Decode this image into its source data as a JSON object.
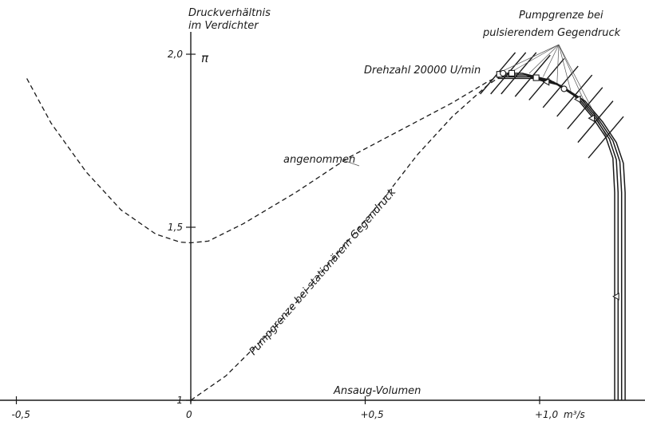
{
  "chart_data": {
    "type": "line",
    "xlim": [
      -0.5,
      1.25
    ],
    "ylim": [
      1.0,
      2.05
    ],
    "x_ticks": [
      {
        "value": -0.5,
        "label": "-0,5"
      },
      {
        "value": 0,
        "label": "0"
      },
      {
        "value": 0.5,
        "label": "+0,5"
      },
      {
        "value": 1.0,
        "label": "+1,0"
      }
    ],
    "x_unit": "m³/s",
    "y_ticks": [
      {
        "value": 1.0,
        "label": "1"
      },
      {
        "value": 1.5,
        "label": "1,5"
      },
      {
        "value": 2.0,
        "label": "2,0"
      }
    ],
    "y_symbol": "π",
    "ylabel_line1": "Druckverhältnis",
    "ylabel_line2": "im Verdichter",
    "xlabel": "Ansaug-Volumen",
    "grid": false,
    "annotations": {
      "speed": "Drehzahl 20000 U/min",
      "assumed": "angenommen",
      "surge_stationary": "Pumpgrenze bei stationärem Gegendruck",
      "surge_pulsating_line1": "Pumpgrenze bei",
      "surge_pulsating_line2": "pulsierendem Gegendruck"
    },
    "series": [
      {
        "style": "dashed",
        "x": [
          -0.47,
          -0.4,
          -0.3,
          -0.2,
          -0.1,
          -0.03,
          0.0,
          0.05,
          0.15,
          0.3,
          0.45,
          0.6,
          0.75,
          0.85,
          0.9
        ],
        "y": [
          1.93,
          1.8,
          1.66,
          1.55,
          1.48,
          1.457,
          1.455,
          1.46,
          1.51,
          1.6,
          1.7,
          1.78,
          1.86,
          1.92,
          1.945
        ]
      },
      {
        "style": "dashed",
        "x": [
          0.0,
          0.1,
          0.25,
          0.4,
          0.55,
          0.65,
          0.75,
          0.85,
          0.9
        ],
        "y": [
          1.0,
          1.07,
          1.22,
          1.4,
          1.58,
          1.71,
          1.82,
          1.91,
          1.945
        ]
      },
      {
        "style": "solid",
        "x": [
          0.88,
          0.95,
          1.03,
          1.1,
          1.15,
          1.19,
          1.21,
          1.215,
          1.215
        ],
        "y": [
          1.945,
          1.945,
          1.925,
          1.88,
          1.82,
          1.76,
          1.7,
          1.6,
          1.0
        ]
      },
      {
        "style": "solid",
        "x": [
          0.88,
          0.96,
          1.04,
          1.11,
          1.16,
          1.2,
          1.22,
          1.225,
          1.225
        ],
        "y": [
          1.94,
          1.94,
          1.92,
          1.875,
          1.815,
          1.755,
          1.695,
          1.6,
          1.0
        ]
      },
      {
        "style": "solid",
        "x": [
          0.88,
          0.97,
          1.05,
          1.12,
          1.17,
          1.21,
          1.23,
          1.235,
          1.235
        ],
        "y": [
          1.935,
          1.935,
          1.915,
          1.87,
          1.81,
          1.75,
          1.69,
          1.6,
          1.0
        ]
      },
      {
        "style": "solid",
        "x": [
          0.88,
          0.98,
          1.06,
          1.13,
          1.18,
          1.22,
          1.24,
          1.245,
          1.245
        ],
        "y": [
          1.93,
          1.93,
          1.91,
          1.865,
          1.805,
          1.745,
          1.685,
          1.6,
          1.0
        ]
      }
    ]
  }
}
